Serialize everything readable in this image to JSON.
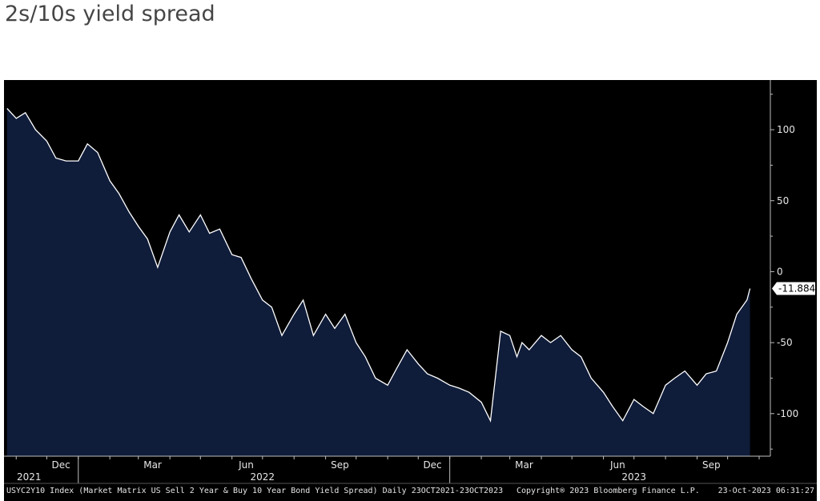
{
  "title": "2s/10s yield spread",
  "chart_data": {
    "type": "area",
    "title": "2s/10s yield spread",
    "ylim": [
      -130,
      135
    ],
    "y_ticks": [
      100,
      50,
      0,
      -50,
      -100
    ],
    "x_tick_labels": [
      "Dec",
      "Mar",
      "Jun",
      "Sep",
      "Dec",
      "Mar",
      "Jun",
      "Sep"
    ],
    "year_labels": [
      "2021",
      "2022",
      "2023"
    ],
    "last_value_label": "-11.884",
    "grid": false,
    "series": [
      {
        "x": [
          "2021-10-23",
          "2021-11-01",
          "2021-11-10",
          "2021-11-20",
          "2021-12-01",
          "2021-12-10",
          "2021-12-20",
          "2022-01-01",
          "2022-01-10",
          "2022-01-20",
          "2022-02-01",
          "2022-02-10",
          "2022-02-20",
          "2022-03-01",
          "2022-03-10",
          "2022-03-20",
          "2022-04-01",
          "2022-04-10",
          "2022-04-20",
          "2022-05-01",
          "2022-05-10",
          "2022-05-20",
          "2022-06-01",
          "2022-06-10",
          "2022-06-20",
          "2022-07-01",
          "2022-07-10",
          "2022-07-20",
          "2022-08-01",
          "2022-08-10",
          "2022-08-20",
          "2022-09-01",
          "2022-09-10",
          "2022-09-20",
          "2022-10-01",
          "2022-10-10",
          "2022-10-20",
          "2022-11-01",
          "2022-11-10",
          "2022-11-20",
          "2022-12-01",
          "2022-12-10",
          "2022-12-20",
          "2023-01-01",
          "2023-01-10",
          "2023-01-20",
          "2023-02-01",
          "2023-02-10",
          "2023-02-20",
          "2023-03-01",
          "2023-03-08",
          "2023-03-13",
          "2023-03-20",
          "2023-04-01",
          "2023-04-10",
          "2023-04-20",
          "2023-05-01",
          "2023-05-10",
          "2023-05-20",
          "2023-06-01",
          "2023-06-10",
          "2023-06-20",
          "2023-07-01",
          "2023-07-10",
          "2023-07-20",
          "2023-08-01",
          "2023-08-10",
          "2023-08-20",
          "2023-09-01",
          "2023-09-10",
          "2023-09-20",
          "2023-10-01",
          "2023-10-10",
          "2023-10-20",
          "2023-10-23"
        ],
        "values": [
          115,
          108,
          112,
          100,
          92,
          80,
          78,
          78,
          90,
          84,
          64,
          55,
          42,
          32,
          23,
          3,
          28,
          40,
          28,
          40,
          27,
          30,
          12,
          10,
          -5,
          -20,
          -25,
          -45,
          -30,
          -20,
          -45,
          -30,
          -40,
          -30,
          -50,
          -60,
          -75,
          -80,
          -68,
          -55,
          -65,
          -72,
          -75,
          -80,
          -82,
          -85,
          -92,
          -105,
          -42,
          -45,
          -60,
          -50,
          -55,
          -45,
          -50,
          -45,
          -55,
          -60,
          -75,
          -85,
          -95,
          -105,
          -90,
          -95,
          -100,
          -80,
          -75,
          -70,
          -80,
          -72,
          -70,
          -50,
          -30,
          -20,
          -11.884
        ]
      }
    ]
  },
  "footer": {
    "left": "USYC2Y10 Index (Market Matrix US Sell 2 Year & Buy 10 Year Bond Yield Spread)  Daily 23OCT2021-23OCT2023",
    "center": "Copyright® 2023 Bloomberg Finance L.P.",
    "right": "23-Oct-2023 06:31:27"
  },
  "colors": {
    "background": "#000000",
    "area_fill": "#0f1c3a",
    "line": "#ffffff",
    "text": "#e6e6e6"
  }
}
